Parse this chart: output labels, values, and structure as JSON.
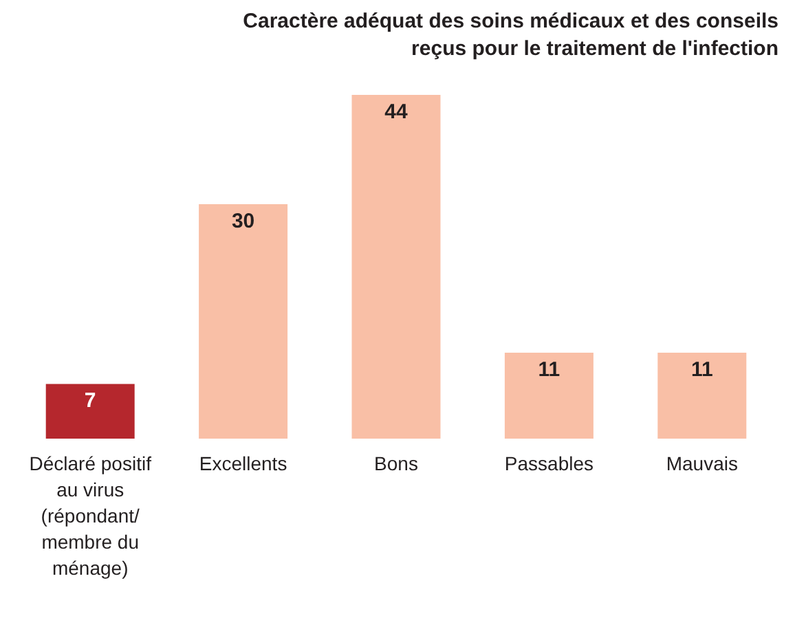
{
  "chart_data": {
    "type": "bar",
    "title": "Caractère adéquat des soins médicaux et des conseils reçus pour le traitement de l'infection",
    "categories": [
      "Déclaré positif au virus (répondant/ membre du ménage)",
      "Excellents",
      "Bons",
      "Passables",
      "Mauvais"
    ],
    "values": [
      7,
      30,
      44,
      11,
      11
    ],
    "colors": [
      "#b5272d",
      "#f9bfa6",
      "#f9bfa6",
      "#f9bfa6",
      "#f9bfa6"
    ],
    "data_labels": true
  }
}
